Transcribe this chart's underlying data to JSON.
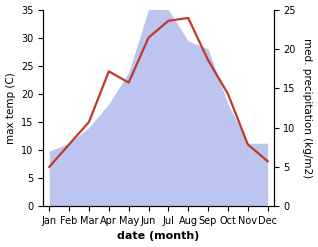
{
  "months": [
    "Jan",
    "Feb",
    "Mar",
    "Apr",
    "May",
    "Jun",
    "Jul",
    "Aug",
    "Sep",
    "Oct",
    "Nov",
    "Dec"
  ],
  "max_temp": [
    7,
    11,
    15,
    24,
    22,
    30,
    33,
    33.5,
    26,
    20,
    11,
    8
  ],
  "precipitation": [
    7,
    8,
    10,
    13,
    17,
    25,
    25,
    21,
    20,
    13,
    8,
    8
  ],
  "temp_color": "#c0392b",
  "precip_fill_color": "#bcc5f0",
  "bg_color": "#ffffff",
  "xlabel": "date (month)",
  "ylabel_left": "max temp (C)",
  "ylabel_right": "med. precipitation (kg/m2)",
  "ylim_left": [
    0,
    35
  ],
  "ylim_right": [
    0,
    25
  ],
  "yticks_left": [
    0,
    5,
    10,
    15,
    20,
    25,
    30,
    35
  ],
  "yticks_right": [
    0,
    5,
    10,
    15,
    20,
    25
  ],
  "temp_lw": 1.6,
  "xlabel_fontsize": 8,
  "ylabel_fontsize": 7.5,
  "tick_fontsize": 7
}
